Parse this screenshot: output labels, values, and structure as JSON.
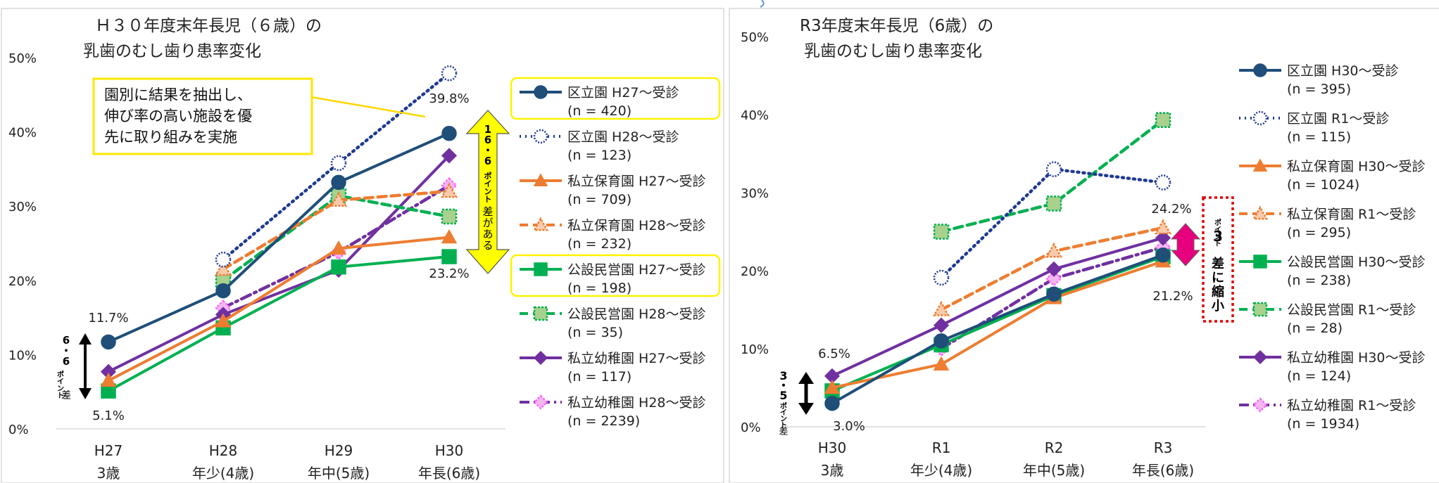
{
  "chart_data": [
    {
      "type": "line",
      "title_line1": "Ｈ３０年度末年長児（６歳）の",
      "title_line2": "乳歯のむし歯り患率変化",
      "y_ticks": [
        "0%",
        "10%",
        "20%",
        "30%",
        "40%",
        "50%"
      ],
      "ylim": [
        0,
        50
      ],
      "categories": [
        {
          "top": "H27",
          "bottom": "3歳"
        },
        {
          "top": "H28",
          "bottom": "年少(4歳)"
        },
        {
          "top": "H29",
          "bottom": "年中(5歳)"
        },
        {
          "top": "H30",
          "bottom": "年長(6歳)"
        }
      ],
      "series": [
        {
          "name": "区立園 H27～受診",
          "n": "(n = 420)",
          "color": "#1F4E79",
          "style": "solid",
          "marker": "circle",
          "values": [
            11.7,
            18.6,
            33.2,
            39.8
          ],
          "highlight": true
        },
        {
          "name": "区立園 H28～受診",
          "n": "(n = 123)",
          "color": "#1F3A93",
          "style": "dot",
          "marker": "circle-open",
          "values": [
            null,
            22.8,
            35.8,
            47.9
          ],
          "highlight": false
        },
        {
          "name": "私立保育園 H27～受診",
          "n": "(n = 709)",
          "color": "#ED7D31",
          "style": "solid",
          "marker": "triangle",
          "values": [
            6.5,
            14.5,
            24.3,
            25.8
          ],
          "highlight": false
        },
        {
          "name": "私立保育園 H28～受診",
          "n": "(n = 232)",
          "color": "#ED7D31",
          "style": "dash",
          "marker": "triangle-open",
          "values": [
            null,
            21.5,
            30.8,
            32.0
          ],
          "highlight": false
        },
        {
          "name": "公設民営園 H27～受診",
          "n": "(n = 198)",
          "color": "#00B050",
          "style": "solid",
          "marker": "square",
          "values": [
            5.1,
            13.6,
            21.8,
            23.2
          ],
          "highlight": true
        },
        {
          "name": "公設民営園 H28～受診",
          "n": "(n = 35)",
          "color": "#00B050",
          "style": "dash",
          "marker": "square-open",
          "values": [
            null,
            20.0,
            31.4,
            28.6
          ],
          "highlight": false
        },
        {
          "name": "私立幼稚園 H27～受診",
          "n": "(n = 117)",
          "color": "#7030A0",
          "style": "solid",
          "marker": "diamond",
          "values": [
            7.7,
            15.4,
            21.4,
            36.8
          ],
          "highlight": false
        },
        {
          "name": "私立幼稚園 H28～受診",
          "n": "(n = 2239)",
          "color": "#7030A0",
          "style": "dashdot",
          "marker": "diamond-open",
          "values": [
            null,
            16.3,
            23.8,
            32.8
          ],
          "highlight": false
        }
      ],
      "data_labels": [
        "11.7%",
        "5.1%",
        "39.8%",
        "23.2%"
      ],
      "callout": [
        "園別に結果を抽出し、",
        "伸び率の高い施設を優",
        "先に取り組みを実施"
      ],
      "bracket_left": [
        "6",
        "・",
        "6",
        "ポ",
        "イ",
        "ン",
        "ト",
        "差"
      ],
      "bracket_right": [
        "1",
        "6",
        "・",
        "6",
        "ポ",
        "イ",
        "ン",
        "ト",
        "差",
        "が",
        "あ",
        "る"
      ]
    },
    {
      "type": "line",
      "title_line1": "R3年度末年長児（6歳）の",
      "title_line2": "乳歯のむし歯り患率変化",
      "y_ticks": [
        "0%",
        "10%",
        "20%",
        "30%",
        "40%",
        "50%"
      ],
      "ylim": [
        0,
        50
      ],
      "categories": [
        {
          "top": "H30",
          "bottom": "3歳"
        },
        {
          "top": "R1",
          "bottom": "年少(4歳)"
        },
        {
          "top": "R2",
          "bottom": "年中(5歳)"
        },
        {
          "top": "R3",
          "bottom": "年長(6歳)"
        }
      ],
      "series": [
        {
          "name": "区立園 H30～受診",
          "n": "(n = 395)",
          "color": "#1F4E79",
          "style": "solid",
          "marker": "circle",
          "values": [
            3.0,
            11.0,
            17.0,
            22.0
          ]
        },
        {
          "name": "区立園 R1～受診",
          "n": "(n = 115)",
          "color": "#1F3A93",
          "style": "dot",
          "marker": "circle-open",
          "values": [
            null,
            19.1,
            33.0,
            31.3
          ]
        },
        {
          "name": "私立保育園 H30～受診",
          "n": "(n = 1024)",
          "color": "#ED7D31",
          "style": "solid",
          "marker": "triangle",
          "values": [
            5.0,
            8.0,
            16.5,
            21.2
          ]
        },
        {
          "name": "私立保育園 R1～受診",
          "n": "(n = 295)",
          "color": "#ED7D31",
          "style": "dash",
          "marker": "triangle-open",
          "values": [
            null,
            15.0,
            22.5,
            25.5
          ]
        },
        {
          "name": "公設民営園 H30～受診",
          "n": "(n = 238)",
          "color": "#00B050",
          "style": "solid",
          "marker": "square",
          "values": [
            4.6,
            10.5,
            16.8,
            21.8
          ]
        },
        {
          "name": "公設民営園 R1～受診",
          "n": "(n = 28)",
          "color": "#00B050",
          "style": "dash",
          "marker": "square-open",
          "values": [
            null,
            25.0,
            28.6,
            39.3
          ]
        },
        {
          "name": "私立幼稚園 H30～受診",
          "n": "(n = 124)",
          "color": "#7030A0",
          "style": "solid",
          "marker": "diamond",
          "values": [
            6.5,
            13.0,
            20.2,
            24.2
          ]
        },
        {
          "name": "私立幼稚園 R1～受診",
          "n": "(n = 1934)",
          "color": "#7030A0",
          "style": "dashdot",
          "marker": "diamond-open",
          "values": [
            null,
            10.0,
            19.0,
            23.0
          ]
        }
      ],
      "data_labels": [
        "6.5%",
        "3.0%",
        "24.2%",
        "21.2%"
      ],
      "bracket_left": [
        "3",
        "・",
        "5",
        "ポ",
        "イ",
        "ン",
        "ト",
        "差"
      ],
      "bracket_right_small": [
        "ポ",
        "イ",
        "ン",
        "ト"
      ],
      "bracket_right_big": [
        "3",
        "差",
        "に",
        "縮",
        "小"
      ]
    }
  ]
}
